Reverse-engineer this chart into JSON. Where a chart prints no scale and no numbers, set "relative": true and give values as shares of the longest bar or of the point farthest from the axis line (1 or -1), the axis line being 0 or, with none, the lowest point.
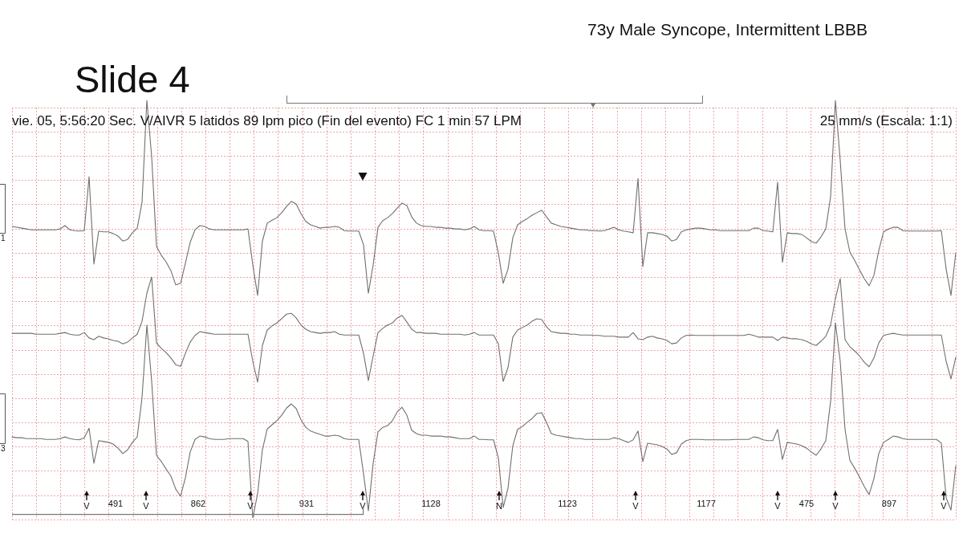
{
  "chart_data": {
    "type": "line",
    "title": "Slide 4",
    "subtitle": "73y Male Syncope, Intermittent LBBB",
    "relative": true,
    "grid": true,
    "categories": [
      null,
      null,
      null,
      null,
      null,
      null,
      null,
      null,
      null,
      null,
      null,
      null,
      null,
      null,
      null,
      null,
      null,
      null,
      null,
      null,
      null,
      null,
      null,
      null,
      null,
      null,
      null,
      null,
      null,
      null,
      null,
      null,
      null,
      null,
      null,
      null,
      null,
      null,
      null,
      null,
      null,
      null,
      null,
      null,
      null,
      null,
      null,
      null,
      null,
      null,
      null,
      null,
      null,
      null,
      null,
      null,
      null,
      null,
      null,
      null,
      null,
      null,
      null,
      null,
      null,
      null,
      null,
      null,
      null,
      null,
      null,
      null,
      null,
      null,
      null,
      null,
      null,
      null,
      null,
      null,
      null,
      null,
      null,
      null,
      null,
      null,
      null,
      null,
      null,
      null,
      null,
      null,
      null,
      null,
      null,
      null,
      null,
      null,
      null,
      null,
      null,
      null,
      null,
      null,
      null,
      null,
      null,
      null,
      null,
      null,
      null,
      null,
      null,
      null,
      null,
      null,
      null,
      null,
      null,
      null,
      null,
      null,
      null,
      null,
      null,
      null,
      null,
      null,
      null,
      null,
      null,
      null,
      null,
      null,
      null,
      null,
      null,
      null,
      null,
      null,
      null,
      null,
      null,
      null,
      null,
      null,
      null,
      null,
      null,
      null,
      null,
      null,
      null,
      null,
      null,
      null,
      null,
      null,
      null,
      null,
      null,
      null,
      null,
      null,
      null,
      null,
      null,
      null,
      null,
      null,
      null,
      null,
      null,
      null,
      null,
      null,
      null,
      null,
      null,
      null,
      null,
      null,
      null,
      null,
      null,
      null,
      null,
      null,
      null,
      null,
      null,
      null,
      null,
      null,
      null,
      null,
      null
    ],
    "series": [
      {
        "name": "1",
        "color": "#707070",
        "values": [
          0.698,
          0.696,
          0.694,
          0.692,
          0.69,
          0.69,
          0.69,
          0.69,
          0.69,
          0.69,
          0.692,
          0.7,
          0.69,
          0.688,
          0.687,
          0.688,
          0.817,
          0.608,
          0.687,
          0.685,
          0.685,
          0.681,
          0.675,
          0.663,
          0.667,
          0.683,
          0.694,
          0.756,
          1,
          0.865,
          0.65,
          0.629,
          0.613,
          0.592,
          0.558,
          0.562,
          0.61,
          0.66,
          0.69,
          0.7,
          0.698,
          0.692,
          0.69,
          0.69,
          0.69,
          0.69,
          0.69,
          0.69,
          0.69,
          0.692,
          0.606,
          0.533,
          0.663,
          0.706,
          0.713,
          0.719,
          0.731,
          0.746,
          0.758,
          0.752,
          0.729,
          0.71,
          0.702,
          0.698,
          0.694,
          0.696,
          0.696,
          0.698,
          0.696,
          0.688,
          0.687,
          0.687,
          0.687,
          0.654,
          0.538,
          0.606,
          0.696,
          0.712,
          0.719,
          0.729,
          0.742,
          0.754,
          0.748,
          0.721,
          0.706,
          0.7,
          0.698,
          0.698,
          0.696,
          0.696,
          0.694,
          0.694,
          0.692,
          0.692,
          0.69,
          0.692,
          0.698,
          0.69,
          0.688,
          0.688,
          0.687,
          0.635,
          0.562,
          0.596,
          0.671,
          0.702,
          0.71,
          0.717,
          0.725,
          0.731,
          0.737,
          0.721,
          0.706,
          0.702,
          0.698,
          0.696,
          0.694,
          0.692,
          0.69,
          0.69,
          0.688,
          0.688,
          0.687,
          0.688,
          0.692,
          0.696,
          0.69,
          0.687,
          0.685,
          0.683,
          0.813,
          0.602,
          0.683,
          0.683,
          0.681,
          0.679,
          0.675,
          0.663,
          0.667,
          0.685,
          0.69,
          0.692,
          0.694,
          0.694,
          0.692,
          0.69,
          0.69,
          0.688,
          0.688,
          0.688,
          0.688,
          0.688,
          0.688,
          0.688,
          0.694,
          0.694,
          0.688,
          0.687,
          0.685,
          0.804,
          0.612,
          0.683,
          0.681,
          0.681,
          0.679,
          0.671,
          0.662,
          0.658,
          0.673,
          0.692,
          0.769,
          1,
          0.856,
          0.692,
          0.637,
          0.617,
          0.594,
          0.573,
          0.556,
          0.581,
          0.64,
          0.685,
          0.692,
          0.696,
          0.696,
          0.688,
          0.687,
          0.687,
          0.687,
          0.687,
          0.687,
          0.687,
          0.687,
          0.688,
          0.596,
          0.533,
          0.635
        ]
      },
      {
        "color": "#707070",
        "values": [
          0.442,
          0.442,
          0.442,
          0.442,
          0.442,
          0.44,
          0.44,
          0.44,
          0.44,
          0.44,
          0.442,
          0.444,
          0.44,
          0.438,
          0.438,
          0.444,
          0.431,
          0.427,
          0.435,
          0.431,
          0.429,
          0.425,
          0.423,
          0.417,
          0.421,
          0.431,
          0.44,
          0.471,
          0.538,
          0.577,
          0.419,
          0.406,
          0.396,
          0.383,
          0.367,
          0.363,
          0.394,
          0.421,
          0.437,
          0.446,
          0.444,
          0.442,
          0.44,
          0.44,
          0.44,
          0.44,
          0.44,
          0.44,
          0.44,
          0.44,
          0.375,
          0.325,
          0.413,
          0.45,
          0.46,
          0.467,
          0.477,
          0.488,
          0.49,
          0.479,
          0.462,
          0.452,
          0.446,
          0.444,
          0.442,
          0.444,
          0.444,
          0.446,
          0.44,
          0.438,
          0.438,
          0.438,
          0.438,
          0.394,
          0.329,
          0.388,
          0.444,
          0.454,
          0.462,
          0.467,
          0.479,
          0.485,
          0.469,
          0.452,
          0.444,
          0.444,
          0.442,
          0.442,
          0.442,
          0.44,
          0.44,
          0.44,
          0.44,
          0.44,
          0.438,
          0.44,
          0.444,
          0.438,
          0.438,
          0.438,
          0.438,
          0.417,
          0.327,
          0.36,
          0.433,
          0.45,
          0.456,
          0.462,
          0.471,
          0.477,
          0.475,
          0.458,
          0.446,
          0.444,
          0.442,
          0.442,
          0.44,
          0.44,
          0.438,
          0.438,
          0.438,
          0.437,
          0.437,
          0.435,
          0.435,
          0.435,
          0.433,
          0.433,
          0.433,
          0.444,
          0.429,
          0.427,
          0.433,
          0.435,
          0.431,
          0.429,
          0.425,
          0.417,
          0.419,
          0.431,
          0.437,
          0.438,
          0.437,
          0.437,
          0.437,
          0.437,
          0.437,
          0.437,
          0.437,
          0.437,
          0.437,
          0.437,
          0.437,
          0.44,
          0.437,
          0.433,
          0.433,
          0.433,
          0.433,
          0.425,
          0.433,
          0.431,
          0.429,
          0.429,
          0.427,
          0.423,
          0.417,
          0.413,
          0.423,
          0.435,
          0.462,
          0.525,
          0.573,
          0.427,
          0.41,
          0.4,
          0.388,
          0.373,
          0.362,
          0.383,
          0.419,
          0.437,
          0.44,
          0.442,
          0.44,
          0.438,
          0.438,
          0.438,
          0.438,
          0.438,
          0.438,
          0.438,
          0.438,
          0.438,
          0.375,
          0.333,
          0.385
        ]
      },
      {
        "name": "3",
        "color": "#707070",
        "values": [
          0.194,
          0.192,
          0.192,
          0.19,
          0.19,
          0.19,
          0.19,
          0.188,
          0.188,
          0.188,
          0.19,
          0.194,
          0.19,
          0.188,
          0.187,
          0.192,
          0.215,
          0.131,
          0.185,
          0.183,
          0.181,
          0.177,
          0.167,
          0.154,
          0.163,
          0.181,
          0.194,
          0.288,
          0.462,
          0.327,
          0.15,
          0.135,
          0.117,
          0.1,
          0.069,
          0.052,
          0.096,
          0.158,
          0.188,
          0.196,
          0.194,
          0.19,
          0.188,
          0.188,
          0.188,
          0.19,
          0.19,
          0.19,
          0.19,
          0.183,
          0,
          0.058,
          0.163,
          0.213,
          0.223,
          0.233,
          0.246,
          0.263,
          0.273,
          0.262,
          0.235,
          0.217,
          0.208,
          0.204,
          0.2,
          0.196,
          0.196,
          0.198,
          0.196,
          0.19,
          0.188,
          0.188,
          0.188,
          0.106,
          0.017,
          0.131,
          0.206,
          0.217,
          0.221,
          0.233,
          0.254,
          0.265,
          0.246,
          0.21,
          0.202,
          0.198,
          0.198,
          0.196,
          0.196,
          0.196,
          0.194,
          0.194,
          0.192,
          0.19,
          0.19,
          0.19,
          0.196,
          0.188,
          0.188,
          0.187,
          0.187,
          0.144,
          0.025,
          0.071,
          0.173,
          0.212,
          0.219,
          0.229,
          0.238,
          0.25,
          0.252,
          0.229,
          0.202,
          0.198,
          0.196,
          0.194,
          0.192,
          0.19,
          0.19,
          0.188,
          0.188,
          0.188,
          0.188,
          0.188,
          0.188,
          0.192,
          0.19,
          0.185,
          0.181,
          0.187,
          0.208,
          0.135,
          0.179,
          0.177,
          0.175,
          0.171,
          0.165,
          0.152,
          0.156,
          0.177,
          0.185,
          0.188,
          0.188,
          0.188,
          0.187,
          0.187,
          0.187,
          0.187,
          0.187,
          0.187,
          0.188,
          0.188,
          0.188,
          0.188,
          0.194,
          0.192,
          0.187,
          0.185,
          0.185,
          0.212,
          0.14,
          0.181,
          0.179,
          0.177,
          0.173,
          0.167,
          0.158,
          0.15,
          0.165,
          0.185,
          0.279,
          0.467,
          0.375,
          0.212,
          0.138,
          0.119,
          0.098,
          0.075,
          0.056,
          0.094,
          0.154,
          0.181,
          0.188,
          0.196,
          0.194,
          0.19,
          0.188,
          0.188,
          0.188,
          0.188,
          0.188,
          0.188,
          0.188,
          0.179,
          0.048,
          0.019,
          0.125
        ]
      }
    ],
    "annotations": [
      "vie. 05, 5:56:20 Sec. V/AIVR 5 latidos 89 lpm pico (Fin del evento) FC 1 min 57 LPM",
      "25 mm/s (Escala: 1:1)",
      "V",
      "491",
      "V",
      "862",
      "V",
      "931",
      "V",
      "1128",
      "N",
      "1123",
      "V",
      "1177",
      "V",
      "475",
      "V",
      "897",
      "V"
    ]
  }
}
